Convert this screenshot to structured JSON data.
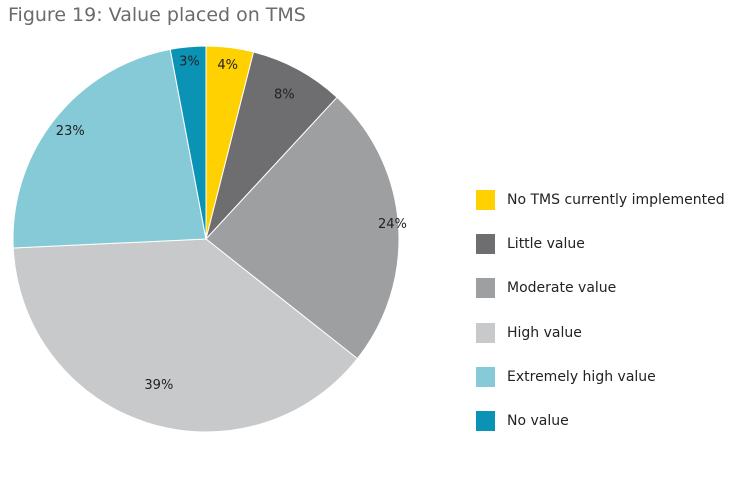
{
  "title": "Figure 19: Value placed on TMS",
  "chart_data": {
    "type": "pie",
    "title": "Figure 19: Value placed on TMS",
    "labels": [
      "No TMS currently implemented",
      "Little value",
      "Moderate value",
      "High value",
      "Extremely high value",
      "No value"
    ],
    "values": [
      4,
      8,
      24,
      39,
      23,
      3
    ],
    "value_labels": [
      "4%",
      "8%",
      "24%",
      "39%",
      "23%",
      "3%"
    ],
    "colors": [
      "#ffd100",
      "#6e6e70",
      "#9e9fa1",
      "#c8c9cb",
      "#85cad6",
      "#0a93b5"
    ],
    "legend_position": "right"
  }
}
